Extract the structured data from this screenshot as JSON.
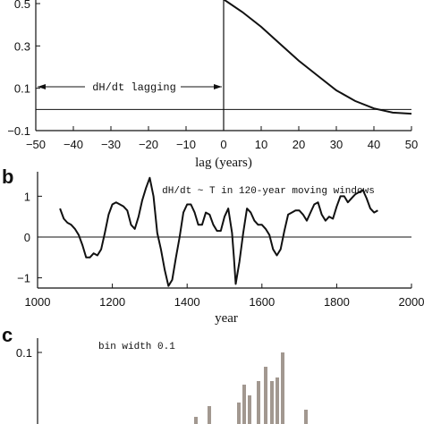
{
  "chart_data": [
    {
      "panel": "a",
      "type": "line",
      "xlabel": "lag (years)",
      "ylabel": "",
      "xlim": [
        -50,
        50
      ],
      "ylim": [
        -0.1,
        0.5
      ],
      "xticks": [
        -50,
        -40,
        -30,
        -20,
        -10,
        0,
        10,
        20,
        30,
        40,
        50
      ],
      "yticks": [
        0.5,
        0.3,
        0.1,
        -0.1
      ],
      "ytick_labels": [
        "0.5",
        "0.3",
        "0.1",
        "−0.1"
      ],
      "xtick_labels": [
        "−50",
        "−40",
        "−30",
        "−20",
        "−10",
        "0",
        "10",
        "20",
        "30",
        "40",
        "50"
      ],
      "annotation": "dH/dt lagging",
      "series": [
        {
          "x": [
            0,
            5,
            10,
            15,
            20,
            25,
            30,
            35,
            40,
            45,
            50
          ],
          "y": [
            0.52,
            0.46,
            0.39,
            0.31,
            0.23,
            0.16,
            0.09,
            0.04,
            0.005,
            -0.015,
            -0.02
          ]
        }
      ]
    },
    {
      "panel": "b",
      "type": "line",
      "xlabel": "year",
      "ylabel": "",
      "xlim": [
        1000,
        2000
      ],
      "ylim": [
        -1.25,
        1.6
      ],
      "xticks": [
        1000,
        1200,
        1400,
        1600,
        1800,
        2000
      ],
      "yticks": [
        1,
        0,
        -1
      ],
      "ytick_labels": [
        "1",
        "0",
        "−1"
      ],
      "xtick_labels": [
        "1000",
        "1200",
        "1400",
        "1600",
        "1800",
        "2000"
      ],
      "annotation": "dH/dt ~ T in 120-year moving windows",
      "series": [
        {
          "x": [
            1060,
            1070,
            1080,
            1090,
            1100,
            1110,
            1120,
            1130,
            1140,
            1150,
            1160,
            1170,
            1180,
            1190,
            1200,
            1210,
            1220,
            1230,
            1240,
            1250,
            1260,
            1270,
            1280,
            1290,
            1300,
            1310,
            1320,
            1330,
            1340,
            1350,
            1360,
            1370,
            1380,
            1390,
            1400,
            1410,
            1420,
            1430,
            1440,
            1450,
            1460,
            1470,
            1480,
            1490,
            1500,
            1510,
            1520,
            1525,
            1530,
            1540,
            1550,
            1560,
            1570,
            1580,
            1590,
            1600,
            1610,
            1620,
            1630,
            1640,
            1650,
            1660,
            1670,
            1680,
            1690,
            1700,
            1710,
            1720,
            1730,
            1740,
            1750,
            1760,
            1770,
            1780,
            1790,
            1800,
            1810,
            1820,
            1830,
            1840,
            1850,
            1860,
            1870,
            1880,
            1890,
            1900,
            1910
          ],
          "y": [
            0.7,
            0.45,
            0.35,
            0.3,
            0.2,
            0.05,
            -0.2,
            -0.5,
            -0.5,
            -0.4,
            -0.45,
            -0.3,
            0.1,
            0.55,
            0.8,
            0.85,
            0.8,
            0.75,
            0.65,
            0.3,
            0.2,
            0.5,
            0.9,
            1.2,
            1.45,
            1.0,
            0.1,
            -0.3,
            -0.8,
            -1.2,
            -1.05,
            -0.5,
            0.0,
            0.6,
            0.8,
            0.8,
            0.6,
            0.3,
            0.3,
            0.6,
            0.55,
            0.3,
            0.15,
            0.15,
            0.5,
            0.7,
            0.1,
            -0.5,
            -1.15,
            -0.6,
            0.1,
            0.7,
            0.6,
            0.4,
            0.3,
            0.3,
            0.2,
            0.05,
            -0.3,
            -0.45,
            -0.3,
            0.15,
            0.55,
            0.6,
            0.65,
            0.65,
            0.55,
            0.4,
            0.6,
            0.8,
            0.85,
            0.55,
            0.4,
            0.5,
            0.45,
            0.75,
            1.0,
            1.0,
            0.85,
            0.95,
            1.05,
            1.1,
            1.15,
            0.95,
            0.7,
            0.6,
            0.65
          ]
        }
      ]
    },
    {
      "panel": "c",
      "type": "bar",
      "ylim": [
        0,
        0.1
      ],
      "yticks": [
        0.1
      ],
      "ytick_labels": [
        "0.1"
      ],
      "annotation": "bin width 0.1",
      "values": [
        0.01,
        0.025,
        0.03,
        0.055,
        0.04,
        0.06,
        0.08,
        0.06,
        0.065,
        0.1,
        0.02
      ]
    }
  ]
}
